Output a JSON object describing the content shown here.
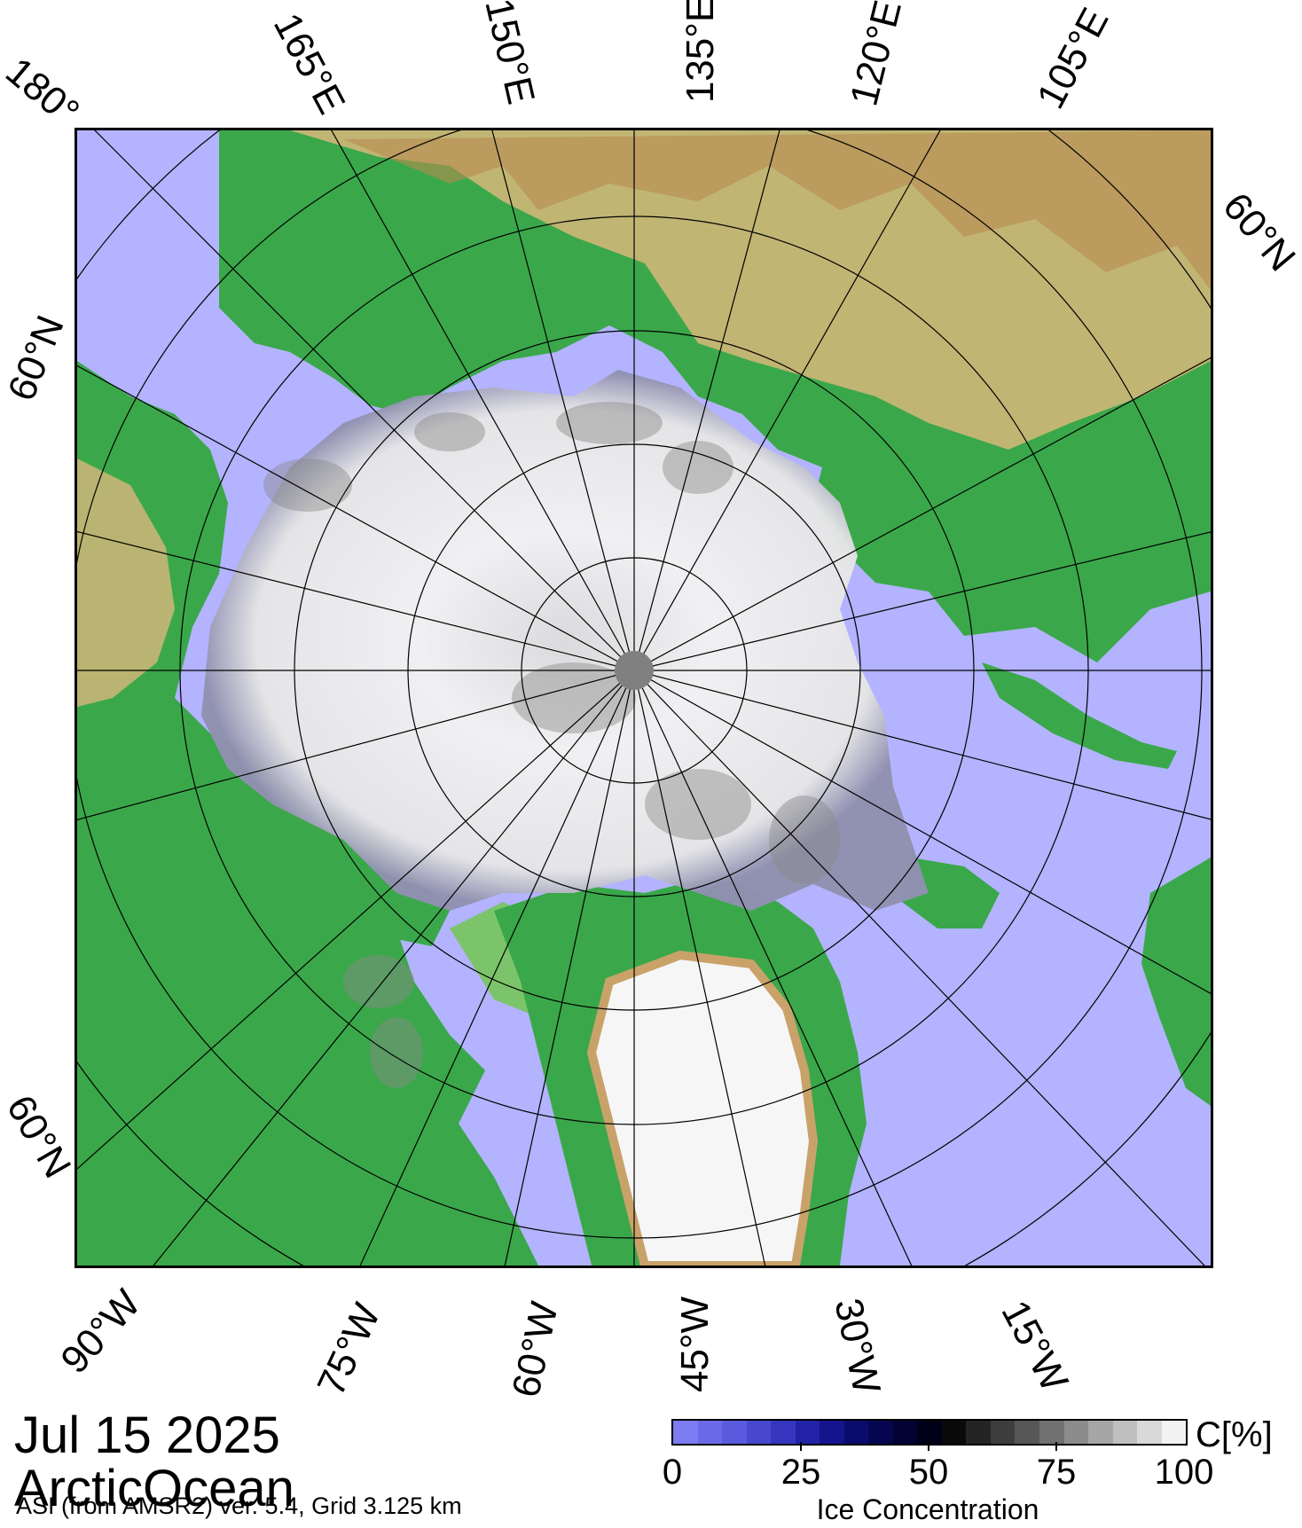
{
  "map": {
    "projection": "north-polar-stereographic",
    "pole_marker": "pole-hole",
    "colors": {
      "ocean": "#b3b3ff",
      "land_low": "#2fa84a",
      "land_mid": "#8fcf6a",
      "land_high": "#e8c78a",
      "ice_sheet": "#f4f4f4",
      "graticule": "#000000"
    },
    "top_labels": [
      "180°",
      "165°E",
      "150°E",
      "135°E",
      "120°E",
      "105°E"
    ],
    "right_labels": [
      "60°N"
    ],
    "left_labels": [
      "60°N",
      "60°N"
    ],
    "bottom_labels": [
      "90°W",
      "75°W",
      "60°W",
      "45°W",
      "30°W",
      "15°W"
    ]
  },
  "title": {
    "date": "Jul 15 2025",
    "region": "ArcticOcean"
  },
  "source_note": "ASI (from AMSR2) ver. 5.4,  Grid 3.125 km",
  "colorbar": {
    "unit": "C[%]",
    "label": "Ice Concentration",
    "ticks": [
      "0",
      "25",
      "50",
      "75",
      "100"
    ],
    "colors": [
      "#7b7bf2",
      "#6a6ae8",
      "#5a5add",
      "#4848cf",
      "#3535c0",
      "#2323a8",
      "#14148c",
      "#0b0b6e",
      "#060650",
      "#020233",
      "#000018",
      "#0a0a0a",
      "#242424",
      "#3d3d3d",
      "#575757",
      "#717171",
      "#8c8c8c",
      "#a6a6a6",
      "#bfbfbf",
      "#d9d9d9",
      "#f2f2f2"
    ]
  }
}
